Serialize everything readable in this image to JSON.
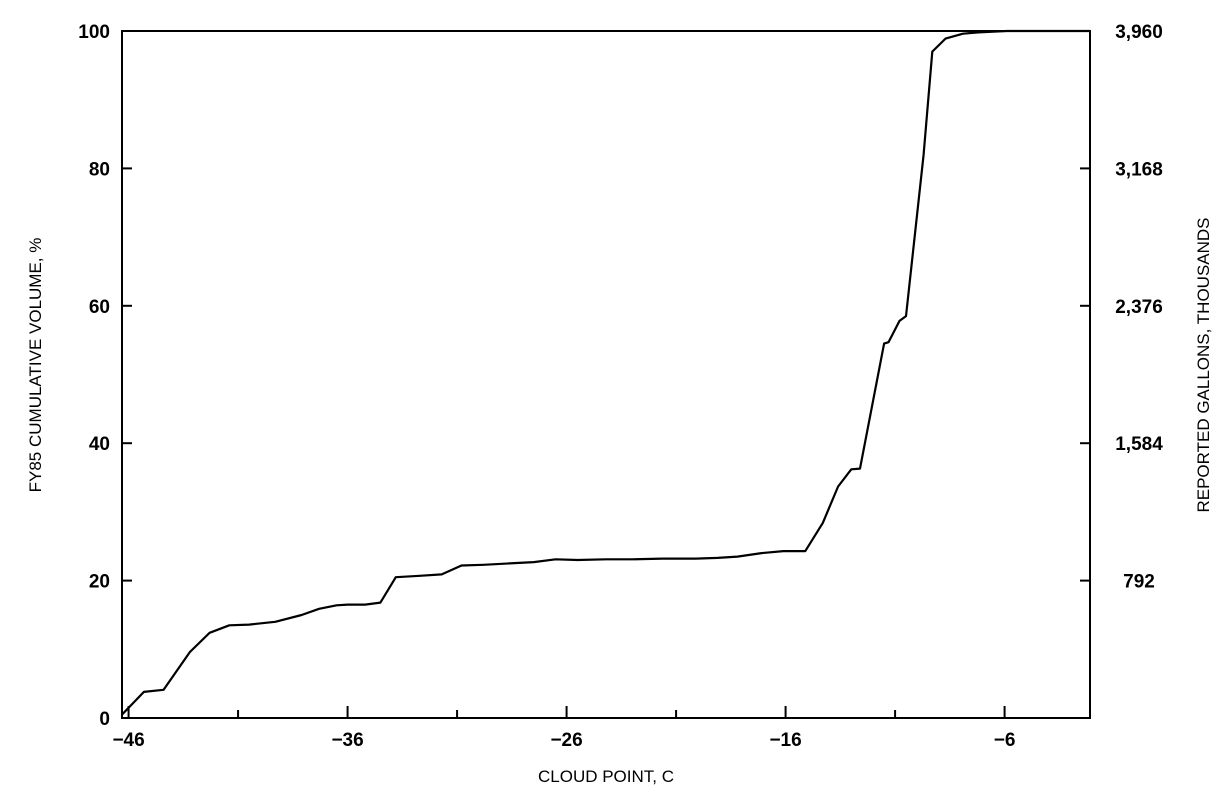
{
  "chart_data": {
    "type": "line",
    "title": "",
    "xlabel": "CLOUD POINT, C",
    "ylabel": "FY85 CUMULATIVE VOLUME, %",
    "y2label": "REPORTED GALLONS, THOUSANDS",
    "xlim": [
      -46.3,
      -2.1
    ],
    "ylim": [
      0,
      100
    ],
    "y2lim": [
      0,
      3960
    ],
    "x_ticks": [
      -46,
      -36,
      -26,
      -16,
      -6
    ],
    "x_tick_labels": [
      "−46",
      "−36",
      "−26",
      "−16",
      "−6"
    ],
    "x_minor_ticks": [
      -41,
      -31,
      -21,
      -11
    ],
    "y_ticks": [
      0,
      20,
      40,
      60,
      80,
      100
    ],
    "y_tick_labels": [
      "0",
      "20",
      "40",
      "60",
      "80",
      "100"
    ],
    "y2_ticks": [
      20,
      40,
      60,
      80,
      100
    ],
    "y2_tick_labels": [
      "792",
      "1,584",
      "2,376",
      "3,168",
      "3,960"
    ],
    "grid": false,
    "series": [
      {
        "x": [
          -46.3,
          -45.3,
          -44.4,
          -43.2,
          -42.3,
          -41.4,
          -40.5,
          -39.3,
          -38.1,
          -37.3,
          -36.5,
          -36.0,
          -35.2,
          -34.5,
          -33.8,
          -32.7,
          -31.7,
          -30.8,
          -29.8,
          -28.6,
          -27.5,
          -26.5,
          -25.5,
          -24.2,
          -23.0,
          -21.6,
          -20.1,
          -19.1,
          -18.2,
          -17.1,
          -16.1,
          -15.5,
          -15.1,
          -14.3,
          -13.6,
          -13.0,
          -12.6,
          -11.5,
          -11.3,
          -10.8,
          -10.5,
          -9.7,
          -9.3,
          -8.7,
          -7.9,
          -7.2,
          -6.5,
          -5.9,
          -5.0,
          -4.3,
          -3.4,
          -2.1
        ],
        "y": [
          0.5,
          3.8,
          4.1,
          9.6,
          12.4,
          13.5,
          13.6,
          14.0,
          15.0,
          15.9,
          16.4,
          16.5,
          16.5,
          16.8,
          20.5,
          20.7,
          20.9,
          22.2,
          22.3,
          22.5,
          22.7,
          23.1,
          23.0,
          23.1,
          23.1,
          23.2,
          23.2,
          23.3,
          23.5,
          24.0,
          24.3,
          24.3,
          24.3,
          28.4,
          33.7,
          36.2,
          36.3,
          54.5,
          54.7,
          57.8,
          58.5,
          82.0,
          97.0,
          98.9,
          99.6,
          99.8,
          99.9,
          100.0,
          100.0,
          100.0,
          100.0,
          100.0
        ]
      }
    ]
  }
}
